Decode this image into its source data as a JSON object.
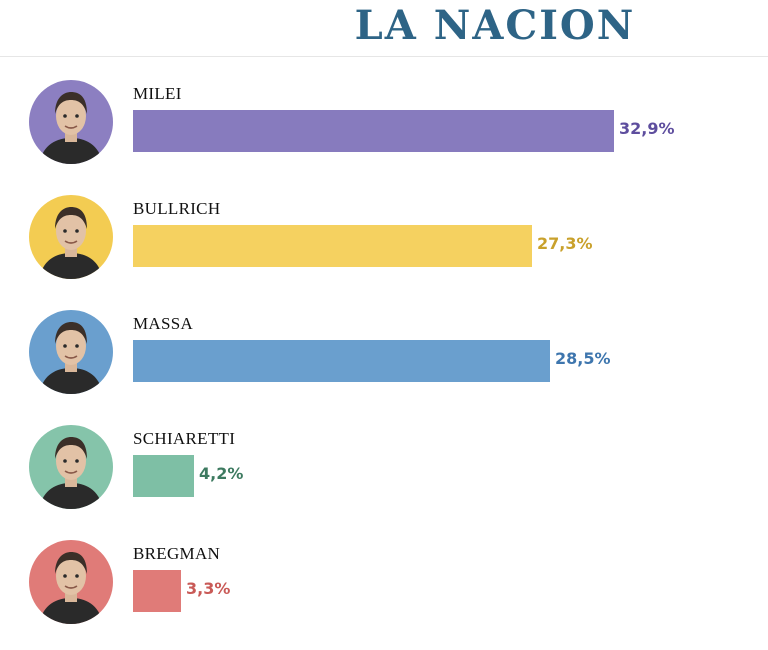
{
  "header": {
    "title": "LA NACION"
  },
  "chart_data": {
    "type": "bar",
    "orientation": "horizontal",
    "title": "",
    "categories": [
      "MILEI",
      "BULLRICH",
      "MASSA",
      "SCHIARETTI",
      "BREGMAN"
    ],
    "values": [
      32.9,
      27.3,
      28.5,
      4.2,
      3.3
    ],
    "value_labels": [
      "32,9%",
      "27,3%",
      "28,5%",
      "4,2%",
      "3,3%"
    ],
    "bar_colors": [
      "#877bbe",
      "#f5d160",
      "#6a9fce",
      "#7ebfa5",
      "#e07b78"
    ],
    "label_colors": [
      "#5e4e9e",
      "#c9a12c",
      "#3e76ae",
      "#3d7a60",
      "#c95a57"
    ],
    "avatar_colors": [
      "#8c7fc1",
      "#f3cc52",
      "#6a9fce",
      "#85c4aa",
      "#e07b78"
    ],
    "icons": [
      "candidate-photo",
      "candidate-photo",
      "candidate-photo",
      "candidate-photo",
      "candidate-photo"
    ],
    "xlim": [
      0,
      32.9
    ],
    "grid": false,
    "legend": "none"
  }
}
